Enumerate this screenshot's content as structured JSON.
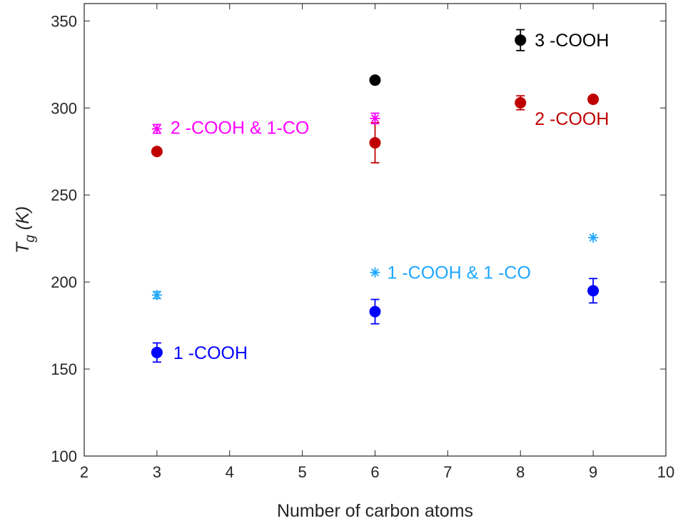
{
  "chart_data": {
    "type": "scatter",
    "title": "",
    "xlabel": "Number of carbon atoms",
    "ylabel_main": "T",
    "ylabel_sub": "g",
    "ylabel_unit": "(K)",
    "xlim": [
      2,
      10
    ],
    "ylim": [
      100,
      360
    ],
    "xticks": [
      2,
      3,
      4,
      5,
      6,
      7,
      8,
      9,
      10
    ],
    "yticks": [
      100,
      150,
      200,
      250,
      300,
      350
    ],
    "grid": false,
    "series": [
      {
        "name": "1 -COOH",
        "color": "#0000ff",
        "marker": "circle",
        "points": [
          {
            "x": 3,
            "y": 159.5,
            "err": 5.5
          },
          {
            "x": 6,
            "y": 183,
            "err": 7
          },
          {
            "x": 9,
            "y": 195,
            "err": 7
          }
        ]
      },
      {
        "name": "1 -COOH & 1 -CO",
        "color": "#1ea7ff",
        "marker": "asterisk",
        "points": [
          {
            "x": 3,
            "y": 192.5,
            "err": 2
          },
          {
            "x": 6,
            "y": 205.5,
            "err": 0
          },
          {
            "x": 9,
            "y": 225.5,
            "err": 0
          }
        ]
      },
      {
        "name": "2 -COOH",
        "color": "#c00000",
        "marker": "circle",
        "points": [
          {
            "x": 3,
            "y": 275,
            "err": 0
          },
          {
            "x": 6,
            "y": 280,
            "err": 11.5
          },
          {
            "x": 8,
            "y": 303,
            "err": 4
          },
          {
            "x": 9,
            "y": 305,
            "err": 0
          }
        ]
      },
      {
        "name": "2 -COOH & 1-CO",
        "color": "#ff00ff",
        "marker": "asterisk",
        "points": [
          {
            "x": 3,
            "y": 288,
            "err": 2.5
          },
          {
            "x": 6,
            "y": 294,
            "err": 3
          }
        ]
      },
      {
        "name": "3 -COOH",
        "color": "#000000",
        "marker": "circle",
        "points": [
          {
            "x": 6,
            "y": 316,
            "err": 0
          },
          {
            "x": 8,
            "y": 339,
            "err": 6
          }
        ]
      }
    ]
  }
}
